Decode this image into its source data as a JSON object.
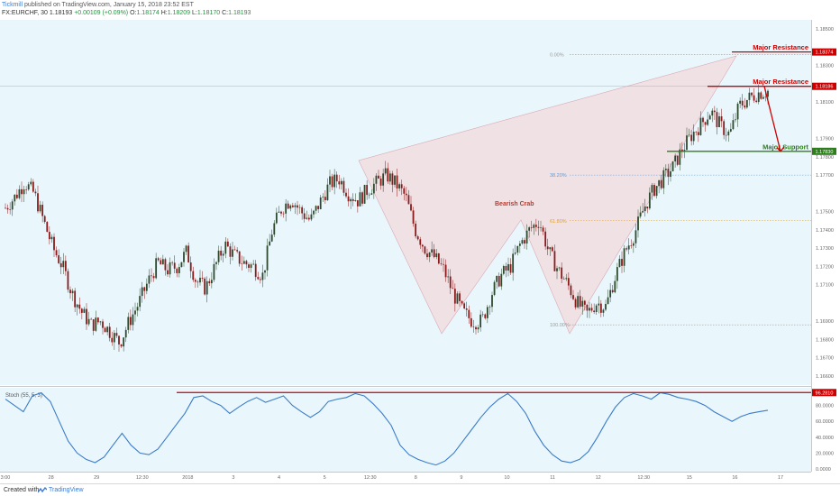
{
  "header": {
    "author": "Tickmill",
    "publisher_suffix": "published on TradingView.com, January 15, 2018 23:52 EST",
    "symbol": "FX:EURCHF, 30",
    "last": "1.18193",
    "change": "+0.00109 (+0.09%)",
    "ohlc": {
      "o_label": "O:",
      "o": "1.18174",
      "h_label": "H:",
      "h": "1.18209",
      "l_label": "L:",
      "l": "1.18170",
      "c_label": "C:",
      "c": "1.18193"
    }
  },
  "footer": {
    "created_with": "Created with",
    "brand": "TradingView",
    "brand_icon": "tradingview-logo-icon"
  },
  "colors": {
    "plot_bg": "#e9f7fc",
    "bull": "#2e4a2e",
    "bear": "#8b1a1a",
    "pattern_fill": "#f2d7dc",
    "resistance": "#cc0000",
    "support": "#2e7d1e",
    "stoch_line": "#3b7bc8",
    "fib": "#9a9a9a",
    "fib_382": "#5b9bd5",
    "fib_618": "#e0a030",
    "label_bearish_crab": "#c0392b"
  },
  "chart_data": {
    "type": "candlestick",
    "symbol": "FX:EURCHF",
    "interval": "30",
    "price_axis": {
      "range": [
        1.1655,
        1.1855
      ],
      "ticks": [
        "1.18500",
        "1.18300",
        "1.18100",
        "1.17900",
        "1.17800",
        "1.17700",
        "1.17500",
        "1.17400",
        "1.17300",
        "1.17200",
        "1.17100",
        "1.16900",
        "1.16800",
        "1.16700",
        "1.16600"
      ]
    },
    "time_axis": {
      "ticks": [
        "3:00",
        "28",
        "29",
        "12:30",
        "2018",
        "3",
        "4",
        "5",
        "12:30",
        "8",
        "9",
        "10",
        "11",
        "12",
        "12:30",
        "15",
        "16",
        "17"
      ]
    },
    "price_path": [
      1.1752,
      1.1758,
      1.1766,
      1.176,
      1.1745,
      1.173,
      1.172,
      1.1705,
      1.1695,
      1.1688,
      1.169,
      1.1684,
      1.1678,
      1.169,
      1.17,
      1.1712,
      1.1722,
      1.1718,
      1.172,
      1.1728,
      1.1712,
      1.1708,
      1.172,
      1.1732,
      1.1726,
      1.1722,
      1.172,
      1.1715,
      1.174,
      1.1752,
      1.1757,
      1.175,
      1.1745,
      1.1755,
      1.1765,
      1.1768,
      1.176,
      1.1756,
      1.1762,
      1.1766,
      1.177,
      1.1765,
      1.1758,
      1.174,
      1.173,
      1.1725,
      1.1718,
      1.1705,
      1.1695,
      1.169,
      1.169,
      1.1705,
      1.1715,
      1.172,
      1.1732,
      1.174,
      1.1745,
      1.1728,
      1.1718,
      1.171,
      1.17,
      1.1694,
      1.17,
      1.1698,
      1.1715,
      1.1728,
      1.1738,
      1.1752,
      1.1762,
      1.1768,
      1.1774,
      1.1784,
      1.1792,
      1.1798,
      1.1805,
      1.1797,
      1.1792,
      1.1808,
      1.1812,
      1.1815,
      1.1816
    ],
    "patterns": [
      {
        "name": "Bearish Crab",
        "label": "Bearish Crab"
      }
    ],
    "fib_levels": [
      {
        "label": "0.00%",
        "price": 1.1836
      },
      {
        "label": "38.20%",
        "price": 1.177
      },
      {
        "label": "61.80%",
        "price": 1.1745
      },
      {
        "label": "100.00%",
        "price": 1.1688
      }
    ],
    "levels": [
      {
        "label": "Major Resistance",
        "price": 1.18374,
        "price_label": "1.18374",
        "kind": "resistance"
      },
      {
        "label": "Major Resistance",
        "price": 1.18186,
        "price_label": "1.18186",
        "kind": "resistance"
      },
      {
        "label": "Major Support",
        "price": 1.1783,
        "price_label": "1.17830",
        "kind": "support"
      }
    ],
    "stoch": {
      "label": "Stoch (55, 5, 3)",
      "range": [
        0,
        100
      ],
      "ticks": [
        "80.0000",
        "60.0000",
        "40.0000",
        "20.0000",
        "0.0000"
      ],
      "level_label": "96.2810",
      "level_value": 96.281,
      "values": [
        88,
        80,
        72,
        92,
        96,
        85,
        60,
        35,
        20,
        12,
        8,
        15,
        30,
        45,
        30,
        20,
        18,
        25,
        40,
        55,
        70,
        90,
        92,
        85,
        80,
        70,
        78,
        85,
        90,
        84,
        88,
        92,
        80,
        72,
        65,
        72,
        85,
        88,
        90,
        95,
        92,
        82,
        70,
        55,
        30,
        18,
        12,
        8,
        5,
        10,
        20,
        35,
        50,
        65,
        78,
        88,
        95,
        85,
        70,
        48,
        30,
        18,
        10,
        8,
        12,
        22,
        40,
        60,
        78,
        90,
        95,
        92,
        88,
        96,
        94,
        90,
        88,
        85,
        80,
        72,
        66,
        60,
        66,
        70,
        72,
        74
      ]
    }
  }
}
